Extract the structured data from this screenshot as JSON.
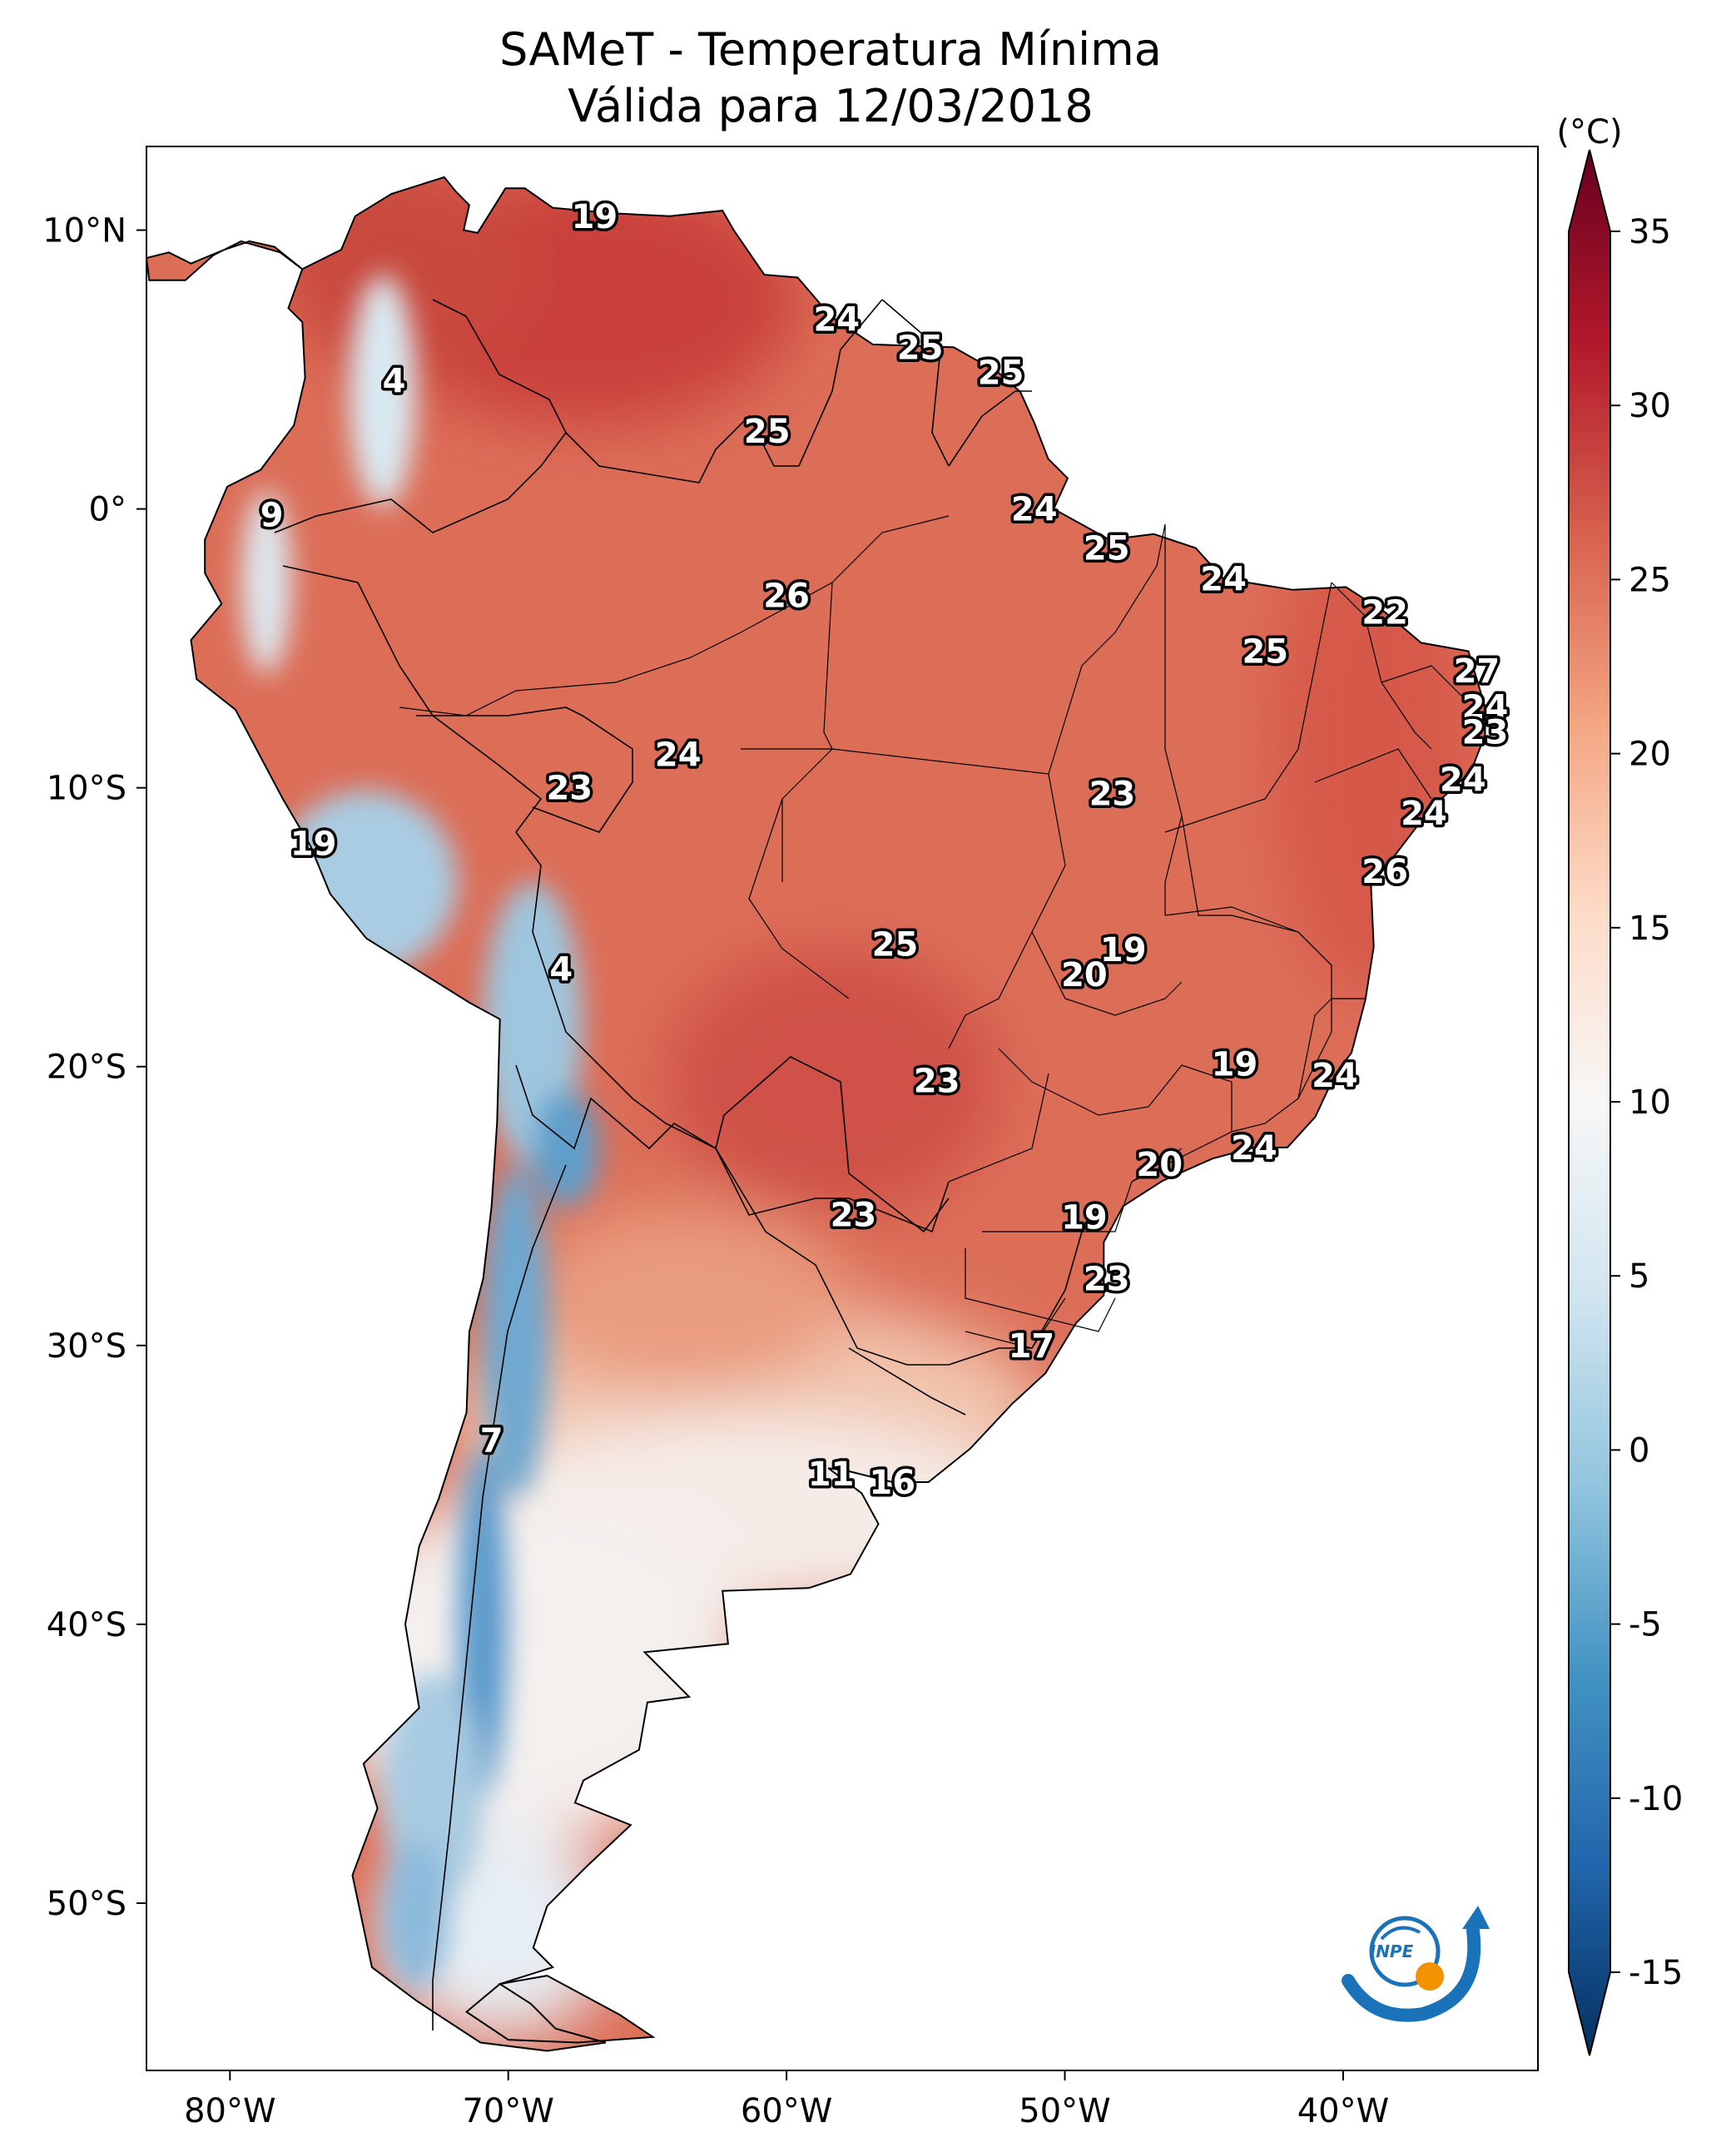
{
  "title": {
    "line1": "SAMeT - Temperatura Mínima",
    "line2": "Válida para 12/03/2018"
  },
  "map": {
    "region": "South America",
    "lon_range": [
      -83,
      -33
    ],
    "lat_range": [
      -56,
      13
    ],
    "lon_ticks": [
      "80°W",
      "70°W",
      "60°W",
      "50°W",
      "40°W"
    ],
    "lat_ticks": [
      "10°N",
      "0°",
      "10°S",
      "20°S",
      "30°S",
      "40°S",
      "50°S"
    ]
  },
  "colorbar": {
    "unit_label": "(°C)",
    "min": -15,
    "max": 35,
    "ticks": [
      "35",
      "30",
      "25",
      "20",
      "15",
      "10",
      "5",
      "0",
      "-5",
      "-10",
      "-15"
    ],
    "palette": [
      "#053061",
      "#2166ac",
      "#4393c3",
      "#92c5de",
      "#d1e5f0",
      "#f7f7f7",
      "#fddbc7",
      "#f4a582",
      "#d6604d",
      "#b2182b",
      "#67001f"
    ]
  },
  "logo": {
    "text": "INPE",
    "colors": [
      "#1a73b8",
      "#f39200"
    ]
  },
  "chart_data": {
    "type": "heatmap",
    "variable": "Temperatura Mínima",
    "unit": "°C",
    "city_values": [
      {
        "lat": 10.5,
        "lon": -66.9,
        "value": 19
      },
      {
        "lat": 6.8,
        "lon": -58.2,
        "value": 24
      },
      {
        "lat": 5.8,
        "lon": -55.2,
        "value": 25
      },
      {
        "lat": 4.9,
        "lon": -52.3,
        "value": 25
      },
      {
        "lat": 4.6,
        "lon": -74.1,
        "value": 4
      },
      {
        "lat": 2.8,
        "lon": -60.7,
        "value": 25
      },
      {
        "lat": -0.2,
        "lon": -78.5,
        "value": 9
      },
      {
        "lat": 0.0,
        "lon": -51.1,
        "value": 24
      },
      {
        "lat": -1.4,
        "lon": -48.5,
        "value": 25
      },
      {
        "lat": -2.5,
        "lon": -44.3,
        "value": 24
      },
      {
        "lat": -3.1,
        "lon": -60.0,
        "value": 26
      },
      {
        "lat": -3.7,
        "lon": -38.5,
        "value": 22
      },
      {
        "lat": -5.1,
        "lon": -42.8,
        "value": 25
      },
      {
        "lat": -5.8,
        "lon": -35.2,
        "value": 27
      },
      {
        "lat": -7.1,
        "lon": -34.9,
        "value": 24
      },
      {
        "lat": -8.0,
        "lon": -34.9,
        "value": 23
      },
      {
        "lat": -8.8,
        "lon": -63.9,
        "value": 24
      },
      {
        "lat": -9.7,
        "lon": -35.7,
        "value": 24
      },
      {
        "lat": -10.0,
        "lon": -67.8,
        "value": 23
      },
      {
        "lat": -10.2,
        "lon": -48.3,
        "value": 23
      },
      {
        "lat": -10.9,
        "lon": -37.1,
        "value": 24
      },
      {
        "lat": -12.0,
        "lon": -77.0,
        "value": 19
      },
      {
        "lat": -13.0,
        "lon": -38.5,
        "value": 26
      },
      {
        "lat": -15.6,
        "lon": -56.1,
        "value": 25
      },
      {
        "lat": -15.8,
        "lon": -47.9,
        "value": 19
      },
      {
        "lat": -16.5,
        "lon": -68.1,
        "value": 4
      },
      {
        "lat": -16.7,
        "lon": -49.3,
        "value": 20
      },
      {
        "lat": -19.9,
        "lon": -43.9,
        "value": 19
      },
      {
        "lat": -20.3,
        "lon": -40.3,
        "value": 24
      },
      {
        "lat": -20.5,
        "lon": -54.6,
        "value": 23
      },
      {
        "lat": -22.9,
        "lon": -43.2,
        "value": 24
      },
      {
        "lat": -23.5,
        "lon": -46.6,
        "value": 20
      },
      {
        "lat": -25.3,
        "lon": -57.6,
        "value": 23
      },
      {
        "lat": -25.4,
        "lon": -49.3,
        "value": 19
      },
      {
        "lat": -27.6,
        "lon": -48.5,
        "value": 23
      },
      {
        "lat": -30.0,
        "lon": -51.2,
        "value": 17
      },
      {
        "lat": -33.4,
        "lon": -70.6,
        "value": 7
      },
      {
        "lat": -34.6,
        "lon": -58.4,
        "value": 11
      },
      {
        "lat": -34.9,
        "lon": -56.2,
        "value": 16
      }
    ]
  }
}
